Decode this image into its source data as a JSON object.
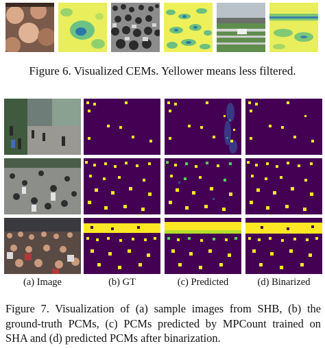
{
  "figure6": {
    "caption": "Figure 6. Visualized CEMs. Yellower means less filtered.",
    "thumbnails": [
      "crowd-photo",
      "cem-map",
      "crowd-photo",
      "cem-map",
      "stadium-photo",
      "cem-map"
    ]
  },
  "figure7": {
    "column_labels": [
      "(a) Image",
      "(b) GT",
      "(c) Predicted",
      "(d) Binarized"
    ],
    "caption_lines": [
      "Figure 7.  Visualization of (a) sample images from SHB, (b) the",
      "ground-truth PCMs, (c) PCMs predicted by MPCount trained on",
      "SHA and (d) predicted PCMs after binarization."
    ]
  },
  "colors": {
    "pcm_background": "#440154",
    "pcm_foreground": "#fde725",
    "cem_yellow": "#f3f15a",
    "cem_green": "#74c87a",
    "cem_blue": "#2a6fa8"
  }
}
